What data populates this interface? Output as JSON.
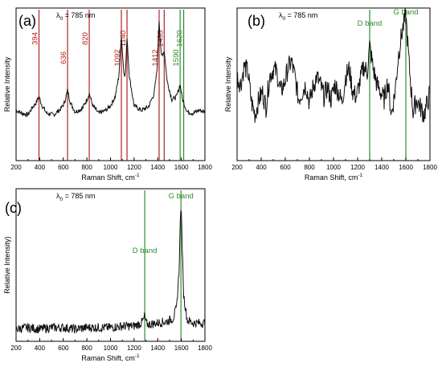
{
  "colors": {
    "red": "#b22222",
    "green": "#2e8b2e",
    "trace": "#111111"
  },
  "chart_data": [
    {
      "type": "line",
      "panel_label": "(a)",
      "annotation": {
        "prefix": "λ",
        "sub": "0",
        "suffix": " = 785 nm"
      },
      "xlabel": "Raman Shift, cm",
      "xlabel_sup": "-1",
      "ylabel": "Relative Intensity",
      "xlim": [
        200,
        1800
      ],
      "xticks": [
        200,
        400,
        600,
        800,
        1000,
        1200,
        1400,
        1600,
        1800
      ],
      "ylim": [
        0,
        1
      ],
      "peak_lines": [
        {
          "x": 394,
          "label": "394",
          "color": "red"
        },
        {
          "x": 636,
          "label": "636",
          "color": "red"
        },
        {
          "x": 820,
          "label": "820",
          "color": "red"
        },
        {
          "x": 1092,
          "label": "1092",
          "color": "red"
        },
        {
          "x": 1140,
          "label": "1140",
          "color": "red"
        },
        {
          "x": 1412,
          "label": "1412",
          "color": "red"
        },
        {
          "x": 1455,
          "label": "1455",
          "color": "red"
        },
        {
          "x": 1590,
          "label": "1590",
          "color": "green"
        },
        {
          "x": 1620,
          "label": "1620",
          "color": "green"
        }
      ],
      "series": [
        {
          "x": [
            200,
            250,
            300,
            340,
            370,
            394,
            420,
            460,
            520,
            580,
            610,
            636,
            660,
            700,
            760,
            800,
            820,
            850,
            900,
            960,
            1000,
            1040,
            1070,
            1092,
            1110,
            1125,
            1140,
            1160,
            1200,
            1260,
            1320,
            1370,
            1395,
            1412,
            1430,
            1455,
            1480,
            1520,
            1560,
            1590,
            1610,
            1620,
            1650,
            1700,
            1750,
            1800
          ],
          "y": [
            0.33,
            0.31,
            0.3,
            0.35,
            0.38,
            0.42,
            0.36,
            0.31,
            0.3,
            0.34,
            0.38,
            0.46,
            0.38,
            0.32,
            0.34,
            0.4,
            0.44,
            0.36,
            0.31,
            0.33,
            0.36,
            0.42,
            0.55,
            0.82,
            0.6,
            0.55,
            0.81,
            0.55,
            0.36,
            0.33,
            0.35,
            0.44,
            0.6,
            0.92,
            0.68,
            0.72,
            0.52,
            0.4,
            0.42,
            0.5,
            0.4,
            0.38,
            0.32,
            0.31,
            0.33,
            0.32
          ]
        }
      ]
    },
    {
      "type": "line",
      "panel_label": "(b)",
      "annotation": {
        "prefix": "λ",
        "sub": "0",
        "suffix": " = 785 nm"
      },
      "xlabel": "Raman Shift, cm",
      "xlabel_sup": "-1",
      "ylabel": "Relative Intensity",
      "xlim": [
        200,
        1800
      ],
      "xticks": [
        200,
        400,
        600,
        800,
        1000,
        1200,
        1400,
        1600,
        1800
      ],
      "ylim": [
        0,
        1
      ],
      "peak_lines": [
        {
          "x": 1300,
          "label": "D band",
          "color": "green"
        },
        {
          "x": 1600,
          "label": "G band",
          "color": "green"
        }
      ],
      "series": [
        {
          "x": [
            200,
            230,
            260,
            290,
            320,
            350,
            380,
            410,
            440,
            470,
            500,
            530,
            560,
            590,
            620,
            650,
            680,
            710,
            740,
            770,
            800,
            830,
            860,
            890,
            920,
            950,
            980,
            1010,
            1040,
            1070,
            1100,
            1130,
            1160,
            1190,
            1220,
            1250,
            1280,
            1300,
            1330,
            1360,
            1390,
            1420,
            1450,
            1480,
            1510,
            1540,
            1570,
            1600,
            1630,
            1660,
            1690,
            1720,
            1750,
            1780,
            1800
          ],
          "y": [
            0.55,
            0.5,
            0.62,
            0.58,
            0.38,
            0.3,
            0.4,
            0.45,
            0.35,
            0.55,
            0.6,
            0.58,
            0.45,
            0.5,
            0.6,
            0.65,
            0.55,
            0.4,
            0.45,
            0.5,
            0.38,
            0.48,
            0.55,
            0.5,
            0.42,
            0.48,
            0.4,
            0.5,
            0.45,
            0.38,
            0.55,
            0.6,
            0.45,
            0.42,
            0.52,
            0.62,
            0.58,
            0.75,
            0.6,
            0.5,
            0.45,
            0.4,
            0.52,
            0.3,
            0.45,
            0.7,
            0.85,
            0.95,
            0.6,
            0.32,
            0.4,
            0.35,
            0.3,
            0.38,
            0.45
          ]
        }
      ]
    },
    {
      "type": "line",
      "panel_label": "(c)",
      "annotation": {
        "prefix": "λ",
        "sub": "0",
        "suffix": " = 785 nm"
      },
      "xlabel": "Raman Shift, cm",
      "xlabel_sup": "-1",
      "ylabel": "Relative Intensity)",
      "xlim": [
        200,
        1800
      ],
      "xticks": [
        200,
        400,
        600,
        800,
        1000,
        1200,
        1400,
        1600,
        1800
      ],
      "ylim": [
        0,
        1
      ],
      "peak_lines": [
        {
          "x": 1290,
          "label": "D band",
          "color": "green"
        },
        {
          "x": 1597,
          "label": "G band",
          "color": "green"
        }
      ],
      "series": [
        {
          "x": [
            200,
            300,
            400,
            500,
            600,
            700,
            800,
            900,
            1000,
            1100,
            1200,
            1260,
            1280,
            1290,
            1300,
            1320,
            1400,
            1480,
            1530,
            1560,
            1580,
            1590,
            1597,
            1605,
            1620,
            1650,
            1700,
            1750,
            1800
          ],
          "y": [
            0.08,
            0.09,
            0.08,
            0.09,
            0.09,
            0.08,
            0.09,
            0.09,
            0.09,
            0.1,
            0.1,
            0.12,
            0.14,
            0.17,
            0.12,
            0.11,
            0.12,
            0.13,
            0.15,
            0.22,
            0.45,
            0.75,
            0.9,
            0.7,
            0.3,
            0.14,
            0.12,
            0.12,
            0.12
          ]
        }
      ]
    }
  ]
}
